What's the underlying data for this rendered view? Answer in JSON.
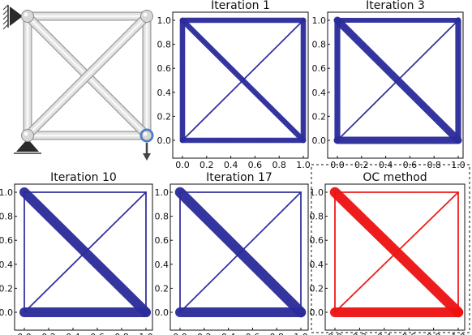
{
  "colors": {
    "design": "#2b2b9b",
    "optimal": "#ee1111",
    "truss_member": "#e2e2e2",
    "truss_edge": "#9a9a9a",
    "load_node": "#3f7fd6"
  },
  "truss_figure": {
    "members": [
      [
        0,
        1
      ],
      [
        1,
        3
      ],
      [
        3,
        2
      ],
      [
        2,
        0
      ],
      [
        0,
        3
      ],
      [
        1,
        2
      ]
    ],
    "nodes": [
      {
        "x": 0,
        "y": 1
      },
      {
        "x": 1,
        "y": 1
      },
      {
        "x": 0,
        "y": 0
      },
      {
        "x": 1,
        "y": 0
      }
    ],
    "pin_support_node": 0,
    "roller_support_node": 2,
    "load_node": 3,
    "load_direction": "down"
  },
  "chart_data": [
    {
      "type": "line",
      "title": "Iteration 1",
      "xticks": [
        "0.0",
        "0.2",
        "0.4",
        "0.6",
        "0.8",
        "1.0"
      ],
      "yticks": [
        "0.0",
        "0.2",
        "0.4",
        "0.6",
        "0.8",
        "1.0"
      ],
      "xlim": [
        0,
        1
      ],
      "ylim": [
        0,
        1
      ],
      "grid": false,
      "color": "design",
      "members": [
        {
          "from": [
            0,
            1
          ],
          "to": [
            1,
            1
          ],
          "weight": 0.55
        },
        {
          "from": [
            1,
            1
          ],
          "to": [
            1,
            0
          ],
          "weight": 0.55
        },
        {
          "from": [
            1,
            0
          ],
          "to": [
            0,
            0
          ],
          "weight": 0.55
        },
        {
          "from": [
            0,
            0
          ],
          "to": [
            0,
            1
          ],
          "weight": 0.55
        },
        {
          "from": [
            0,
            1
          ],
          "to": [
            1,
            0
          ],
          "weight": 0.55
        },
        {
          "from": [
            1,
            1
          ],
          "to": [
            0,
            0
          ],
          "weight": 0.15
        }
      ]
    },
    {
      "type": "line",
      "title": "Iteration 3",
      "xticks": [
        "0.0",
        "0.2",
        "0.4",
        "0.6",
        "0.8",
        "1.0"
      ],
      "yticks": [
        "0.0",
        "0.2",
        "0.4",
        "0.6",
        "0.8",
        "1.0"
      ],
      "xlim": [
        0,
        1
      ],
      "ylim": [
        0,
        1
      ],
      "grid": false,
      "color": "design",
      "members": [
        {
          "from": [
            0,
            1
          ],
          "to": [
            1,
            1
          ],
          "weight": 0.5
        },
        {
          "from": [
            1,
            1
          ],
          "to": [
            1,
            0
          ],
          "weight": 0.6
        },
        {
          "from": [
            1,
            0
          ],
          "to": [
            0,
            0
          ],
          "weight": 0.75
        },
        {
          "from": [
            0,
            0
          ],
          "to": [
            0,
            1
          ],
          "weight": 0.6
        },
        {
          "from": [
            0,
            1
          ],
          "to": [
            1,
            0
          ],
          "weight": 0.75
        },
        {
          "from": [
            1,
            1
          ],
          "to": [
            0,
            0
          ],
          "weight": 0.15
        }
      ]
    },
    {
      "type": "line",
      "title": "Iteration 10",
      "xticks": [
        "0.0",
        "0.2",
        "0.4",
        "0.6",
        "0.8",
        "1.0"
      ],
      "yticks": [
        "0.0",
        "0.2",
        "0.4",
        "0.6",
        "0.8",
        "1.0"
      ],
      "xlim": [
        0,
        1
      ],
      "ylim": [
        0,
        1
      ],
      "grid": false,
      "color": "design",
      "members": [
        {
          "from": [
            0,
            1
          ],
          "to": [
            1,
            1
          ],
          "weight": 0.15
        },
        {
          "from": [
            1,
            1
          ],
          "to": [
            1,
            0
          ],
          "weight": 0.15
        },
        {
          "from": [
            1,
            0
          ],
          "to": [
            0,
            0
          ],
          "weight": 1.0
        },
        {
          "from": [
            0,
            0
          ],
          "to": [
            0,
            1
          ],
          "weight": 0.15
        },
        {
          "from": [
            0,
            1
          ],
          "to": [
            1,
            0
          ],
          "weight": 1.0
        },
        {
          "from": [
            1,
            1
          ],
          "to": [
            0,
            0
          ],
          "weight": 0.15
        }
      ]
    },
    {
      "type": "line",
      "title": "Iteration 17",
      "xticks": [
        "0.0",
        "0.2",
        "0.4",
        "0.6",
        "0.8",
        "1.0"
      ],
      "yticks": [
        "0.0",
        "0.2",
        "0.4",
        "0.6",
        "0.8",
        "1.0"
      ],
      "xlim": [
        0,
        1
      ],
      "ylim": [
        0,
        1
      ],
      "grid": false,
      "color": "design",
      "members": [
        {
          "from": [
            0,
            1
          ],
          "to": [
            1,
            1
          ],
          "weight": 0.15
        },
        {
          "from": [
            1,
            1
          ],
          "to": [
            1,
            0
          ],
          "weight": 0.15
        },
        {
          "from": [
            1,
            0
          ],
          "to": [
            0,
            0
          ],
          "weight": 1.0
        },
        {
          "from": [
            0,
            0
          ],
          "to": [
            0,
            1
          ],
          "weight": 0.15
        },
        {
          "from": [
            0,
            1
          ],
          "to": [
            1,
            0
          ],
          "weight": 1.05
        },
        {
          "from": [
            1,
            1
          ],
          "to": [
            0,
            0
          ],
          "weight": 0.15
        }
      ]
    },
    {
      "type": "line",
      "title": "OC method",
      "xticks": [
        "0.0",
        "0.2",
        "0.4",
        "0.6",
        "0.8",
        "1.0"
      ],
      "yticks": [
        "0.0",
        "0.2",
        "0.4",
        "0.6",
        "0.8",
        "1.0"
      ],
      "xlim": [
        0,
        1
      ],
      "ylim": [
        0,
        1
      ],
      "grid": false,
      "color": "optimal",
      "highlighted": true,
      "members": [
        {
          "from": [
            0,
            1
          ],
          "to": [
            1,
            1
          ],
          "weight": 0.15
        },
        {
          "from": [
            1,
            1
          ],
          "to": [
            1,
            0
          ],
          "weight": 0.15
        },
        {
          "from": [
            1,
            0
          ],
          "to": [
            0,
            0
          ],
          "weight": 1.0
        },
        {
          "from": [
            0,
            0
          ],
          "to": [
            0,
            1
          ],
          "weight": 0.15
        },
        {
          "from": [
            0,
            1
          ],
          "to": [
            1,
            0
          ],
          "weight": 1.05
        },
        {
          "from": [
            1,
            1
          ],
          "to": [
            0,
            0
          ],
          "weight": 0.15
        }
      ]
    }
  ]
}
